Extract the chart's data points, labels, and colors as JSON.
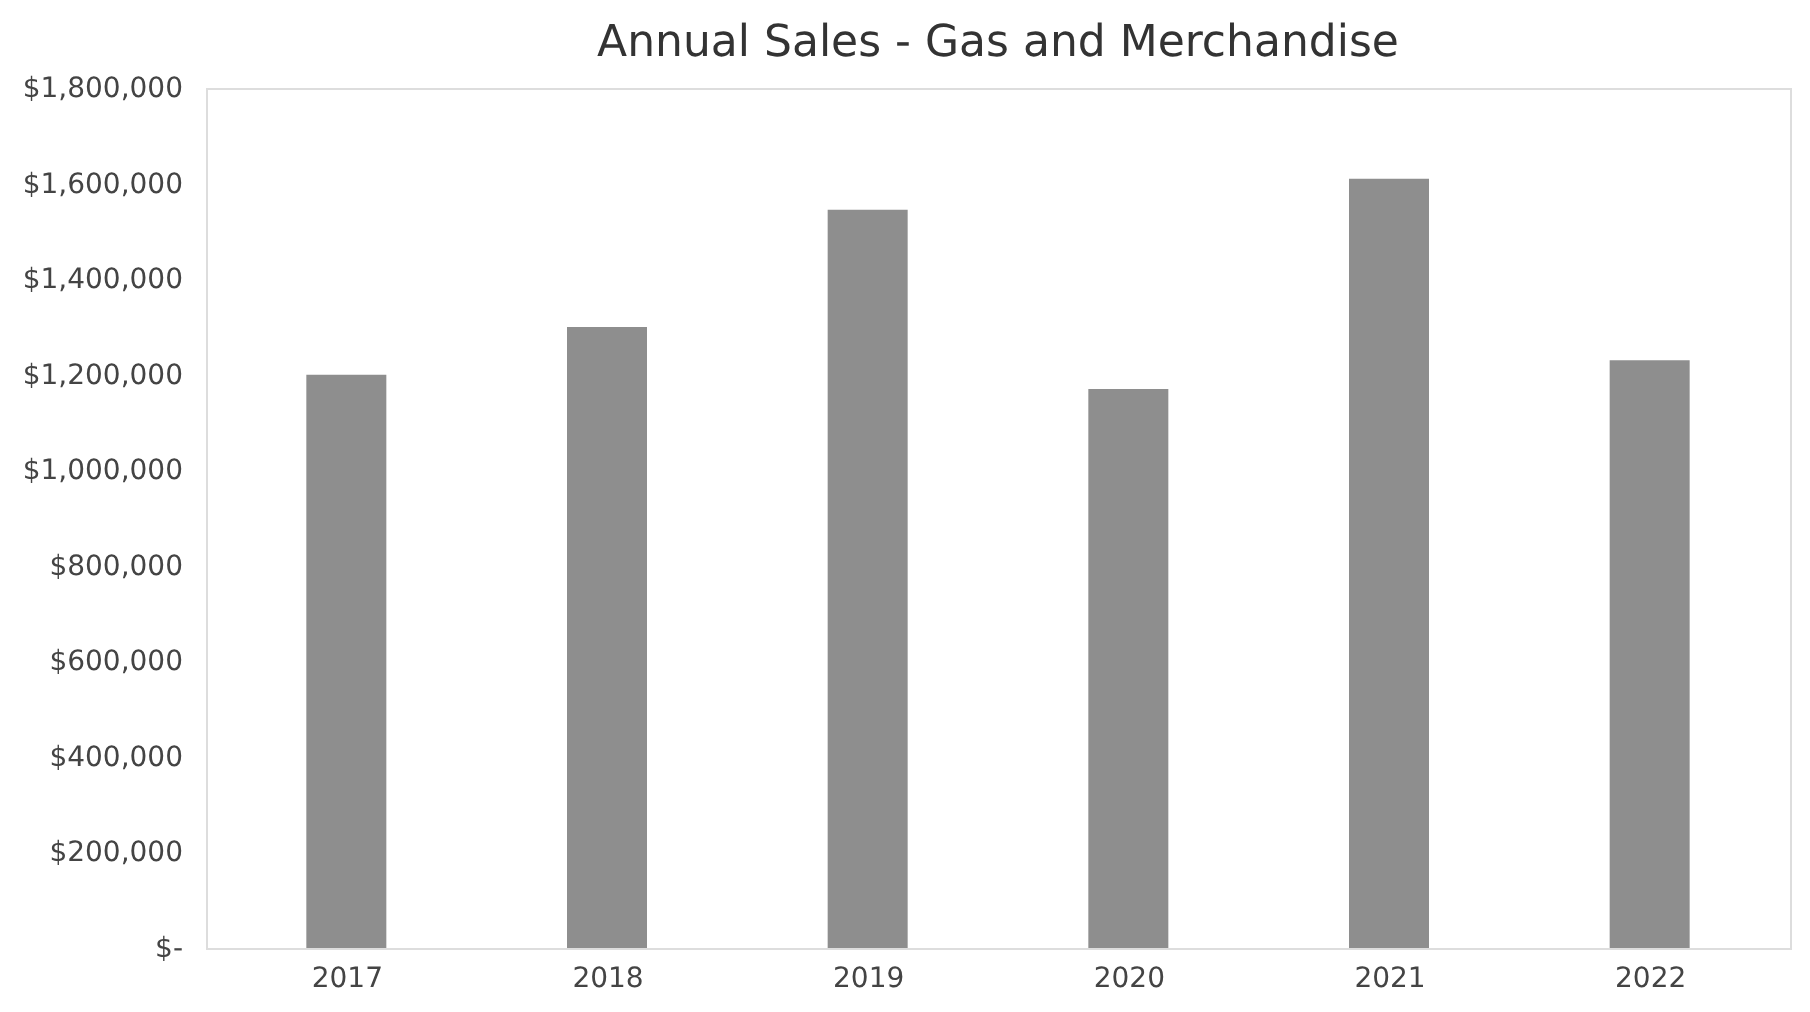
{
  "chart_data": {
    "type": "bar",
    "title": "Annual Sales - Gas and Merchandise",
    "categories": [
      "2017",
      "2018",
      "2019",
      "2020",
      "2021",
      "2022"
    ],
    "values": [
      1200000,
      1300000,
      1545000,
      1170000,
      1610000,
      1230000
    ],
    "color": "#8e8e8e",
    "ylim": [
      0,
      1800000
    ],
    "yticks": [
      {
        "value": 0,
        "label": "$-"
      },
      {
        "value": 200000,
        "label": "$200,000"
      },
      {
        "value": 400000,
        "label": "$400,000"
      },
      {
        "value": 600000,
        "label": "$600,000"
      },
      {
        "value": 800000,
        "label": "$800,000"
      },
      {
        "value": 1000000,
        "label": "$1,000,000"
      },
      {
        "value": 1200000,
        "label": "$1,200,000"
      },
      {
        "value": 1400000,
        "label": "$1,400,000"
      },
      {
        "value": 1600000,
        "label": "$1,600,000"
      },
      {
        "value": 1800000,
        "label": "$1,800,000"
      }
    ],
    "grid": false
  }
}
